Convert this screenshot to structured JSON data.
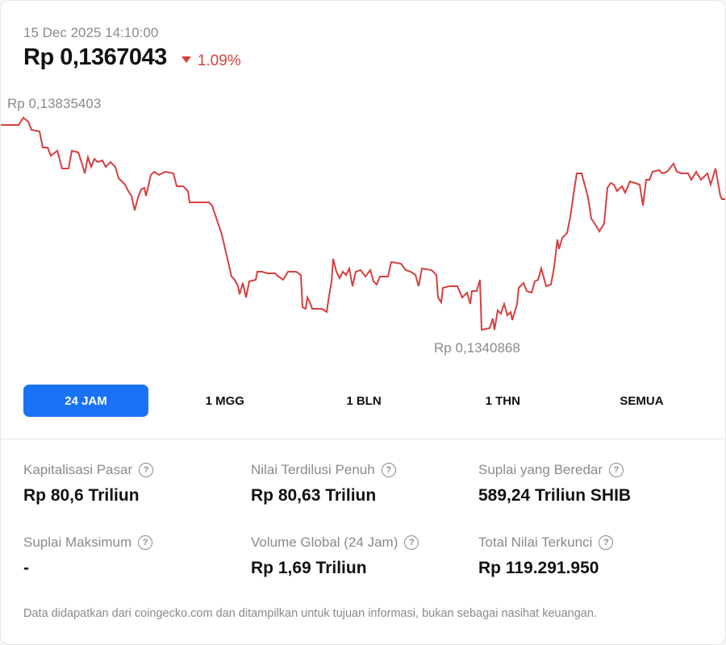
{
  "header": {
    "timestamp": "15 Dec 2025 14:10:00",
    "price": "Rp 0,1367043",
    "change": "1.09%",
    "change_color": "#d63f3f"
  },
  "chart": {
    "high_label": "Rp 0,13835403",
    "low_label": "Rp 0,1340868",
    "line_color": "#d63f3f"
  },
  "tabs": [
    {
      "label": "24 JAM",
      "active": true
    },
    {
      "label": "1 MGG",
      "active": false
    },
    {
      "label": "1 BLN",
      "active": false
    },
    {
      "label": "1 THN",
      "active": false
    },
    {
      "label": "SEMUA",
      "active": false
    }
  ],
  "stats": [
    {
      "label": "Kapitalisasi Pasar",
      "value": "Rp 80,6 Triliun"
    },
    {
      "label": "Nilai Terdilusi Penuh",
      "value": "Rp 80,63 Triliun"
    },
    {
      "label": "Suplai yang Beredar",
      "value": "589,24 Triliun SHIB"
    },
    {
      "label": "Suplai Maksimum",
      "value": "-"
    },
    {
      "label": "Volume Global (24 Jam)",
      "value": "Rp 1,69 Triliun"
    },
    {
      "label": "Total Nilai Terkunci",
      "value": "Rp 119.291.950"
    }
  ],
  "disclaimer": "Data didapatkan dari coingecko.com dan ditampilkan untuk tujuan informasi, bukan sebagai nasihat keuangan.",
  "icons": {
    "help": "help-circle-icon",
    "down": "triangle-down-icon"
  },
  "accent_color": "#1a73f5"
}
